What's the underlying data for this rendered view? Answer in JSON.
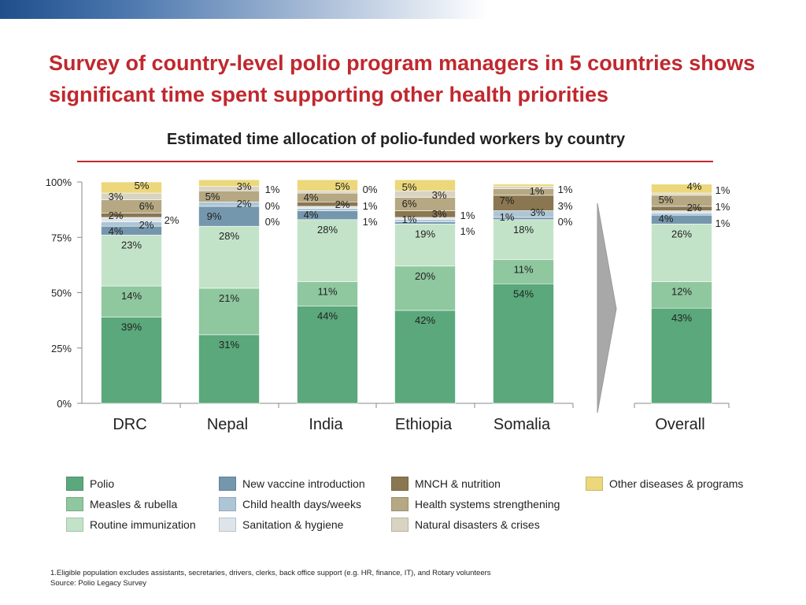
{
  "header": {
    "title": "Survey of country-level polio program managers in 5 countries shows significant time spent supporting other health priorities",
    "subtitle": "Estimated time allocation of polio-funded workers by country"
  },
  "chart_data": {
    "type": "bar",
    "stacked": true,
    "categories": [
      "DRC",
      "Nepal",
      "India",
      "Ethiopia",
      "Somalia",
      "Overall"
    ],
    "ylim": [
      0,
      100
    ],
    "yticks": [
      "0%",
      "25%",
      "50%",
      "75%",
      "100%"
    ],
    "grid": false,
    "legend_position": "bottom",
    "series": [
      {
        "name": "Polio",
        "color": "#5aa87b",
        "values": [
          39,
          31,
          44,
          42,
          54,
          43
        ]
      },
      {
        "name": "Measles & rubella",
        "color": "#8fc79f",
        "values": [
          14,
          21,
          11,
          20,
          11,
          12
        ]
      },
      {
        "name": "Routine immunization",
        "color": "#c3e3c9",
        "values": [
          23,
          28,
          28,
          19,
          18,
          26
        ]
      },
      {
        "name": "New vaccine introduction",
        "color": "#7597ad",
        "values": [
          4,
          9,
          4,
          1,
          1,
          4
        ]
      },
      {
        "name": "Child health days/weeks",
        "color": "#adc6d6",
        "values": [
          2,
          2,
          1,
          1,
          3,
          1
        ]
      },
      {
        "name": "Sanitation & hygiene",
        "color": "#dde5eb",
        "values": [
          2,
          0,
          1,
          1,
          0,
          1
        ]
      },
      {
        "name": "MNCH & nutrition",
        "color": "#8a7650",
        "values": [
          2,
          0,
          2,
          3,
          7,
          2
        ]
      },
      {
        "name": "Health systems strengthening",
        "color": "#b5a882",
        "values": [
          6,
          5,
          4,
          6,
          3,
          5
        ]
      },
      {
        "name": "Natural disasters & crises",
        "color": "#d9d3c2",
        "values": [
          3,
          2,
          1,
          3,
          1,
          1
        ]
      },
      {
        "name": "Other diseases & programs",
        "color": "#ecd77a",
        "values": [
          5,
          3,
          5,
          5,
          1,
          4
        ]
      }
    ]
  },
  "footnotes": {
    "note1": "1.Eligible population excludes assistants, secretaries, drivers, clerks, back office support (e.g. HR, finance, IT), and Rotary volunteers",
    "source": "Source: Polio Legacy Survey"
  }
}
